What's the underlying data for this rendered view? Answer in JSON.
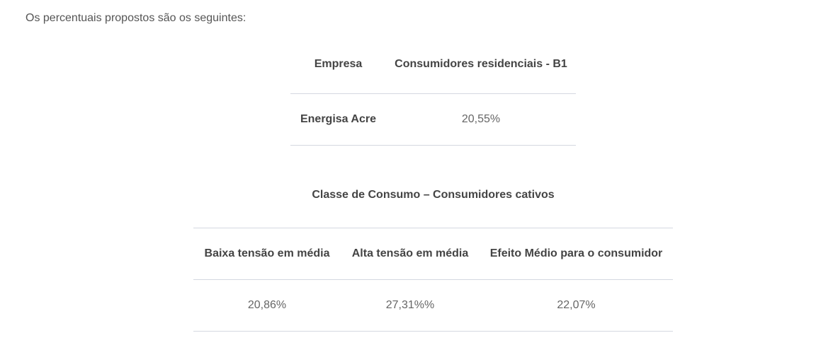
{
  "intro": "Os percentuais propostos são os seguintes:",
  "table1": {
    "headers": [
      "Empresa",
      "Consumidores residenciais - B1"
    ],
    "rows": [
      [
        "Energisa Acre",
        "20,55%"
      ]
    ]
  },
  "table2": {
    "caption": "Classe de Consumo – Consumidores cativos",
    "headers": [
      "Baixa tensão em média",
      "Alta tensão em média",
      "Efeito Médio para o consumidor"
    ],
    "rows": [
      [
        "20,86%",
        "27,31%%",
        "22,07%"
      ]
    ]
  }
}
